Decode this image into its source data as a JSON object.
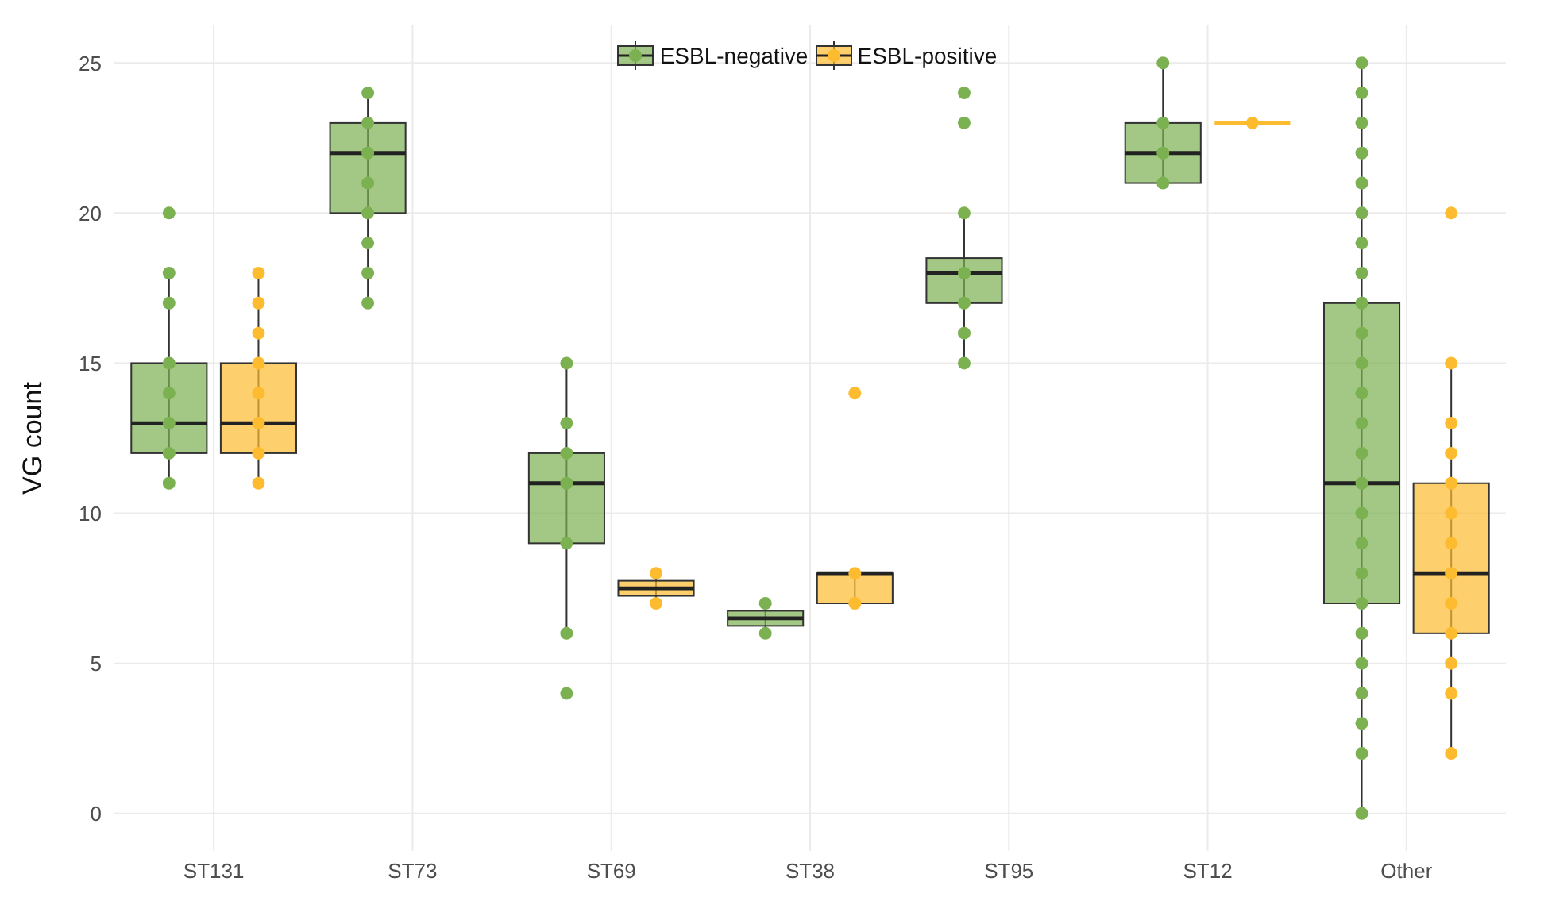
{
  "chart_data": {
    "type": "box",
    "ylabel": "VG count",
    "categories": [
      "ST131",
      "ST73",
      "ST69",
      "ST38",
      "ST95",
      "ST12",
      "Other"
    ],
    "ylim": [
      -1.25,
      26.25
    ],
    "yticks": [
      0,
      5,
      10,
      15,
      20,
      25
    ],
    "grid": true,
    "legend": "top",
    "series": [
      {
        "name": "ESBL-negative",
        "color": "#7cb151",
        "boxes": [
          {
            "low": 11,
            "q1": 12,
            "median": 13,
            "q3": 15,
            "high": 18
          },
          {
            "low": 17,
            "q1": 20,
            "median": 22,
            "q3": 23,
            "high": 24
          },
          {
            "low": 6,
            "q1": 9,
            "median": 11,
            "q3": 12,
            "high": 15
          },
          {
            "low": 6,
            "q1": 6.25,
            "median": 6.5,
            "q3": 6.75,
            "high": 7
          },
          {
            "low": 15,
            "q1": 17,
            "median": 18,
            "q3": 18.5,
            "high": 20
          },
          {
            "low": 21,
            "q1": 21,
            "median": 22,
            "q3": 23,
            "high": 25
          },
          {
            "low": 0,
            "q1": 7,
            "median": 11,
            "q3": 17,
            "high": 25
          }
        ]
      },
      {
        "name": "ESBL-positive",
        "color": "#fdbb2f",
        "boxes": [
          {
            "low": 11,
            "q1": 12,
            "median": 13,
            "q3": 15,
            "high": 18
          },
          null,
          {
            "low": 7,
            "q1": 7.25,
            "median": 7.5,
            "q3": 7.75,
            "high": 8
          },
          {
            "low": 7,
            "q1": 7,
            "median": 8,
            "q3": 8,
            "high": 8
          },
          null,
          {
            "low": 23,
            "q1": 23,
            "median": 23,
            "q3": 23,
            "high": 23
          },
          {
            "low": 2,
            "q1": 6,
            "median": 8,
            "q3": 11,
            "high": 15
          }
        ]
      },
      {
        "type": "scatter",
        "color": "#7cb151",
        "x": [
          "ST131",
          "ST131",
          "ST131",
          "ST131",
          "ST131",
          "ST131",
          "ST131",
          "ST131",
          "ST73",
          "ST73",
          "ST73",
          "ST73",
          "ST73",
          "ST73",
          "ST73",
          "ST73",
          "ST69",
          "ST69",
          "ST69",
          "ST69",
          "ST69",
          "ST69",
          "ST69",
          "ST38",
          "ST38",
          "ST95",
          "ST95",
          "ST95",
          "ST95",
          "ST95",
          "ST95",
          "ST95",
          "ST12",
          "ST12",
          "ST12",
          "ST12",
          "Other",
          "Other",
          "Other",
          "Other",
          "Other",
          "Other",
          "Other",
          "Other",
          "Other",
          "Other",
          "Other",
          "Other",
          "Other",
          "Other",
          "Other",
          "Other",
          "Other",
          "Other",
          "Other",
          "Other",
          "Other",
          "Other",
          "Other",
          "Other",
          "Other"
        ],
        "values": [
          20,
          18,
          17,
          15,
          14,
          13,
          12,
          11,
          24,
          23,
          22,
          21,
          20,
          19,
          18,
          17,
          15,
          13,
          12,
          11,
          9,
          6,
          4,
          7,
          6,
          24,
          23,
          20,
          18,
          17,
          16,
          15,
          25,
          23,
          22,
          21,
          25,
          24,
          23,
          22,
          21,
          20,
          19,
          18,
          17,
          16,
          15,
          14,
          13,
          12,
          11,
          10,
          9,
          8,
          7,
          6,
          5,
          4,
          3,
          2,
          0
        ]
      },
      {
        "type": "scatter",
        "color": "#fdbb2f",
        "x": [
          "ST131",
          "ST131",
          "ST131",
          "ST131",
          "ST131",
          "ST131",
          "ST131",
          "ST131",
          "ST69",
          "ST69",
          "ST38",
          "ST38",
          "ST38",
          "ST12",
          "Other",
          "Other",
          "Other",
          "Other",
          "Other",
          "Other",
          "Other",
          "Other",
          "Other",
          "Other",
          "Other",
          "Other",
          "Other"
        ],
        "values": [
          18,
          17,
          16,
          15,
          14,
          13,
          12,
          11,
          8,
          7,
          14,
          8,
          7,
          23,
          20,
          15,
          13,
          12,
          11,
          10,
          9,
          8,
          7,
          6,
          5,
          4,
          2
        ]
      }
    ]
  }
}
